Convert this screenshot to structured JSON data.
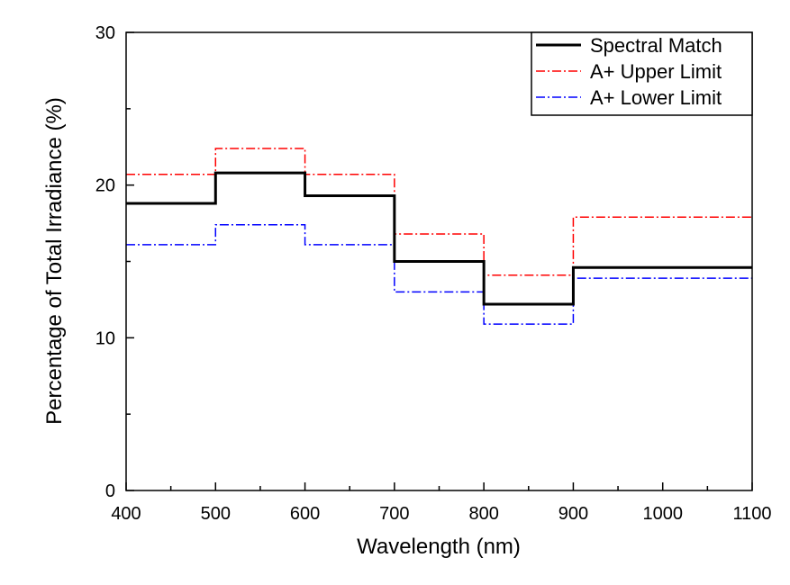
{
  "chart_data": {
    "type": "line",
    "step": true,
    "xlabel": "Wavelength (nm)",
    "ylabel": "Percentage of Total Irradiance (%)",
    "xlim": [
      400,
      1100
    ],
    "ylim": [
      0,
      30
    ],
    "xticks": [
      400,
      500,
      600,
      700,
      800,
      900,
      1000,
      1100
    ],
    "yticks": [
      0,
      10,
      20,
      30
    ],
    "grid": false,
    "legend_position": "top-right",
    "bin_edges": [
      400,
      500,
      600,
      700,
      800,
      900,
      1100
    ],
    "series": [
      {
        "name": "Spectral Match",
        "values": [
          18.8,
          20.8,
          19.3,
          15.0,
          12.2,
          14.6
        ],
        "color": "#000000",
        "style": "solid"
      },
      {
        "name": "A+ Upper Limit",
        "values": [
          20.7,
          22.4,
          20.7,
          16.8,
          14.1,
          17.9
        ],
        "color": "#ff0000",
        "style": "dashdot"
      },
      {
        "name": "A+ Lower Limit",
        "values": [
          16.1,
          17.4,
          16.1,
          13.0,
          10.9,
          13.9
        ],
        "color": "#0000ff",
        "style": "dashdot"
      }
    ]
  }
}
